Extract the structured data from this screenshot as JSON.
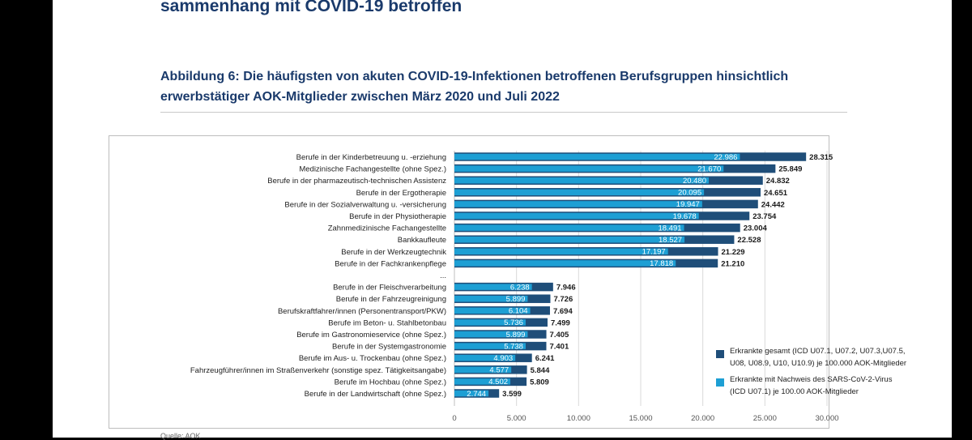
{
  "heading": "sammenhang mit COVID-19 betroffen",
  "caption": "Abbildung 6: Die häufigsten von akuten COVID-19-Infektionen betroffenen Berufsgruppen hinsichtlich erwerbstätiger AOK-Mitglieder zwischen März 2020 und Juli 2022",
  "colors": {
    "total": "#1f4e79",
    "sars": "#1d9fd4",
    "navy_text": "#1a3a6b"
  },
  "chart_data": {
    "type": "bar",
    "orientation": "horizontal",
    "title": "",
    "xlabel": "",
    "ylabel": "",
    "xlim": [
      0,
      30000
    ],
    "x_ticks": [
      "0",
      "5.000",
      "10.000",
      "15.000",
      "20.000",
      "25.000",
      "30.000"
    ],
    "grid": true,
    "legend_position": "bottom-right",
    "categories": [
      "Berufe in der Kinderbetreuung u. -erziehung",
      "Medizinische Fachangestellte (ohne Spez.)",
      "Berufe in der pharmazeutisch-technischen Assistenz",
      "Berufe in der Ergotherapie",
      "Berufe in der Sozialverwaltung u. -versicherung",
      "Berufe in der Physiotherapie",
      "Zahnmedizinische Fachangestellte",
      "Bankkaufleute",
      "Berufe in der Werkzeugtechnik",
      "Berufe in der Fachkrankenpflege",
      "...",
      "Berufe in der Fleischverarbeitung",
      "Berufe in der Fahrzeugreinigung",
      "Berufskraftfahrer/innen (Personentransport/PKW)",
      "Berufe im Beton- u. Stahlbetonbau",
      "Berufe im Gastronomieservice (ohne Spez.)",
      "Berufe in der Systemgastronomie",
      "Berufe im Aus- u. Trockenbau (ohne Spez.)",
      "Fahrzeugführer/innen im Straßenverkehr (sonstige spez. Tätigkeitsangabe)",
      "Berufe im Hochbau (ohne Spez.)",
      "Berufe in der Landwirtschaft (ohne Spez.)"
    ],
    "series": [
      {
        "name": "Erkrankte gesamt  (ICD U07.1, U07.2, U07.3,U07.5, U08, U08.9, U10, U10.9) je 100.000 AOK-Mitglieder",
        "values": [
          28315,
          25849,
          24832,
          24651,
          24442,
          23754,
          23004,
          22528,
          21229,
          21210,
          null,
          7946,
          7726,
          7694,
          7499,
          7405,
          7401,
          6241,
          5844,
          5809,
          3599
        ],
        "labels": [
          "28.315",
          "25.849",
          "24.832",
          "24.651",
          "24.442",
          "23.754",
          "23.004",
          "22.528",
          "21.229",
          "21.210",
          "",
          "7.946",
          "7.726",
          "7.694",
          "7.499",
          "7.405",
          "7.401",
          "6.241",
          "5.844",
          "5.809",
          "3.599"
        ]
      },
      {
        "name": "Erkrankte mit Nachweis des SARS-CoV-2-Virus (ICD U07.1) je 100.00 AOK-Mitglieder",
        "values": [
          22986,
          21670,
          20480,
          20095,
          19947,
          19678,
          18491,
          18527,
          17197,
          17818,
          null,
          6238,
          5899,
          6104,
          5736,
          5899,
          5738,
          4903,
          4577,
          4502,
          2744
        ],
        "labels": [
          "22.986",
          "21.670",
          "20.480",
          "20.095",
          "19.947",
          "19.678",
          "18.491",
          "18.527",
          "17.197",
          "17.818",
          "",
          "6.238",
          "5.899",
          "6.104",
          "5.736",
          "5.899",
          "5.738",
          "4.903",
          "4.577",
          "4.502",
          "2.744"
        ]
      }
    ]
  },
  "legend": {
    "total_line1": "Erkrankte gesamt  (ICD U07.1, U07.2, U07.3,U07.5,",
    "total_line2": "U08, U08.9, U10, U10.9) je 100.000 AOK-Mitglieder",
    "sars_line1": "Erkrankte mit Nachweis des SARS-CoV-2-Virus",
    "sars_line2": "(ICD U07.1) je 100.00 AOK-Mitglieder"
  },
  "footer": "Quelle: AOK"
}
